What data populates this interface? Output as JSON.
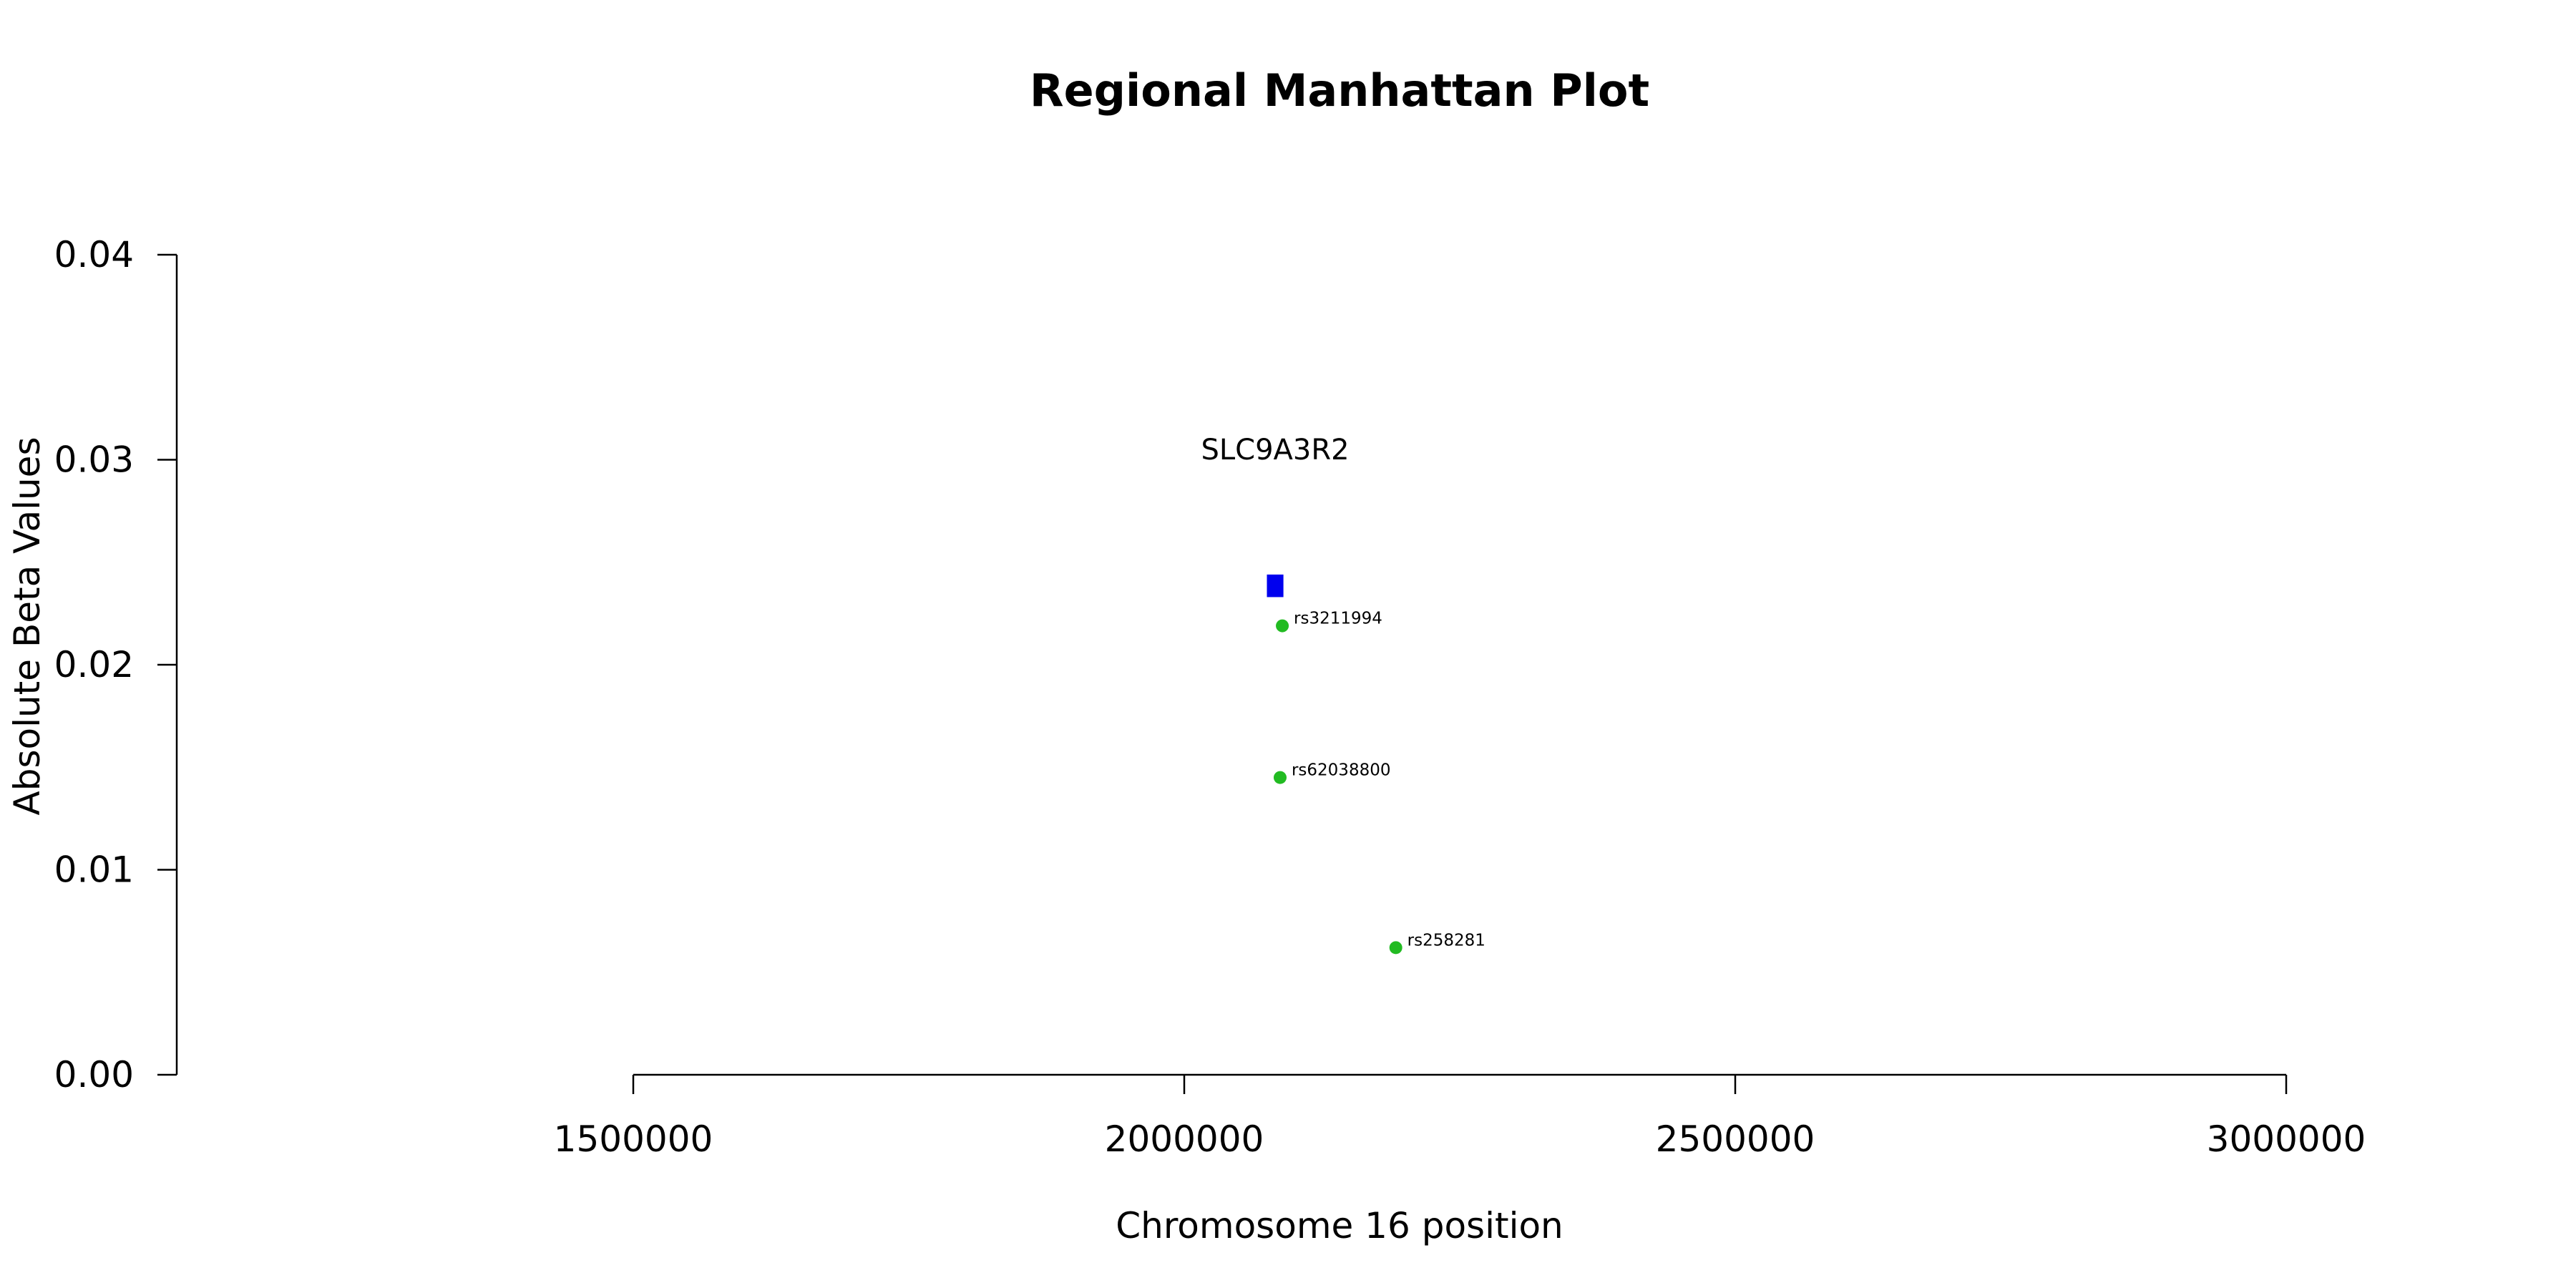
{
  "chart_data": {
    "type": "scatter",
    "title": "Regional Manhattan Plot",
    "xlabel": "Chromosome 16 position",
    "ylabel": "Absolute Beta Values",
    "xlim": [
      1500000,
      3000000
    ],
    "ylim": [
      0,
      0.04
    ],
    "x_ticks": [
      1500000,
      2000000,
      2500000,
      3000000
    ],
    "x_tick_labels": [
      "1500000",
      "2000000",
      "2500000",
      "3000000"
    ],
    "y_ticks": [
      0,
      0.01,
      0.02,
      0.03,
      0.04
    ],
    "y_tick_labels": [
      "0.00",
      "0.01",
      "0.02",
      "0.03",
      "0.04"
    ],
    "grid": false,
    "gene": {
      "name": "SLC9A3R2",
      "start": 2075000,
      "end": 2090000,
      "y_bottom": 0.0233,
      "y_top": 0.0244,
      "label_y": 0.0305,
      "color": "#0000ee"
    },
    "points": [
      {
        "label": "rs3211994",
        "x": 2089000,
        "y": 0.0219
      },
      {
        "label": "rs62038800",
        "x": 2087000,
        "y": 0.0145
      },
      {
        "label": "rs258281",
        "x": 2192000,
        "y": 0.0062
      }
    ],
    "point_color": "#22bb22"
  }
}
